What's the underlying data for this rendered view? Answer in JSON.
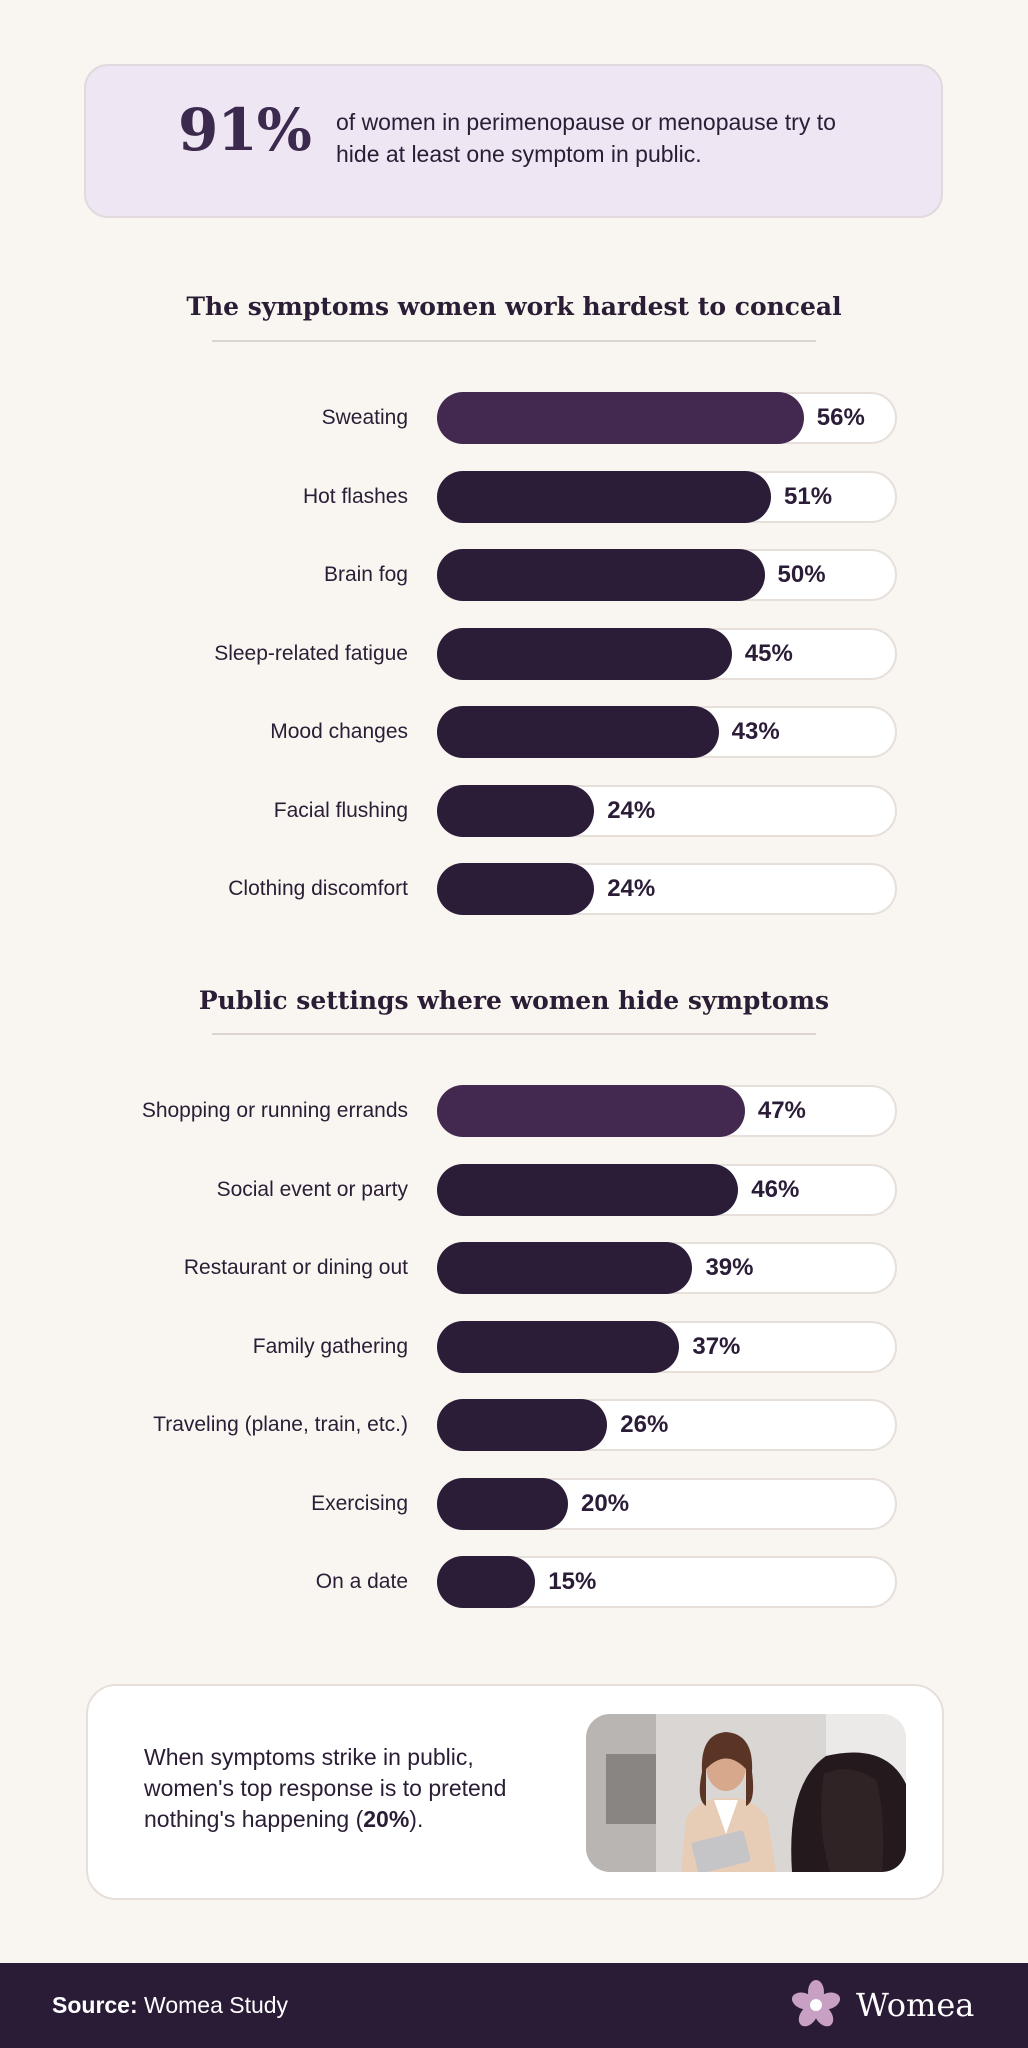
{
  "headline": {
    "number": "91%",
    "text": "of women in perimenopause or menopause try to hide at least one symptom in public."
  },
  "chart_data": [
    {
      "type": "bar",
      "orientation": "horizontal",
      "title": "The symptoms women work hardest to conceal",
      "unit": "%",
      "xlim": [
        0,
        100
      ],
      "categories": [
        "Sweating",
        "Hot flashes",
        "Brain fog",
        "Sleep-related fatigue",
        "Mood changes",
        "Facial flushing",
        "Clothing discomfort"
      ],
      "values": [
        56,
        51,
        50,
        45,
        43,
        24,
        24
      ],
      "value_labels": [
        "56%",
        "51%",
        "50%",
        "45%",
        "43%",
        "24%",
        "24%"
      ],
      "highlight_color": "#43294f",
      "bar_color": "#2b1c37"
    },
    {
      "type": "bar",
      "orientation": "horizontal",
      "title": "Public settings where women hide symptoms",
      "unit": "%",
      "xlim": [
        0,
        100
      ],
      "categories": [
        "Shopping or running errands",
        "Social event or party",
        "Restaurant or dining out",
        "Family gathering",
        "Traveling (plane, train, etc.)",
        "Exercising",
        "On a date"
      ],
      "values": [
        47,
        46,
        39,
        37,
        26,
        20,
        15
      ],
      "value_labels": [
        "47%",
        "46%",
        "39%",
        "37%",
        "26%",
        "20%",
        "15%"
      ],
      "highlight_color": "#43294f",
      "bar_color": "#2b1c37"
    }
  ],
  "callout": {
    "text_before": "When symptoms strike in public, women's top response is to pretend nothing's happening (",
    "highlight": "20%",
    "text_after": ")."
  },
  "footer": {
    "source_label": "Source:",
    "source_value": "Womea Study",
    "brand": "Womea",
    "brand_icon": "flower-icon"
  },
  "colors": {
    "background": "#f9f6f1",
    "accent_card": "#efe6f3",
    "dark": "#2a1b36",
    "logo_petal": "#c7a0c3"
  }
}
